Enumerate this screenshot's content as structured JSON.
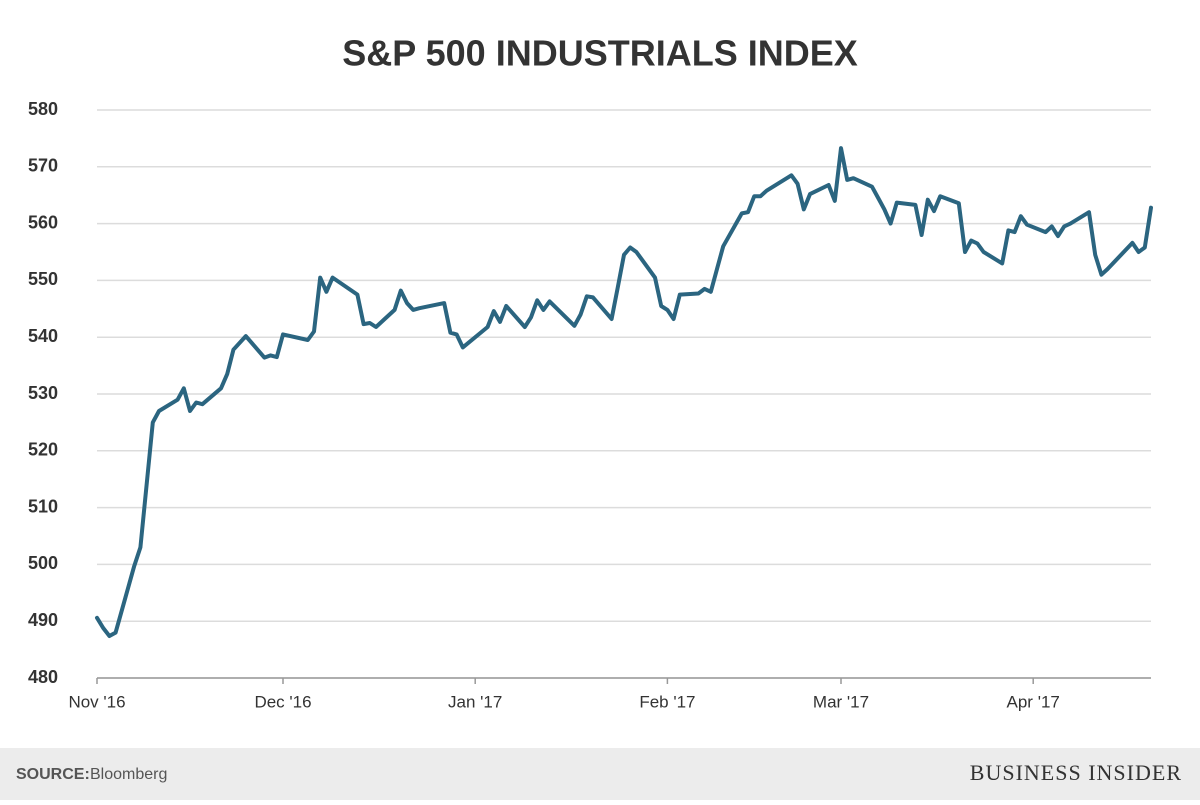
{
  "chart_data": {
    "type": "line",
    "title": "S&P 500 INDUSTRIALS INDEX",
    "x": [
      0,
      1,
      2,
      3,
      6,
      7,
      9,
      10,
      13,
      14,
      15,
      16,
      17,
      20,
      21,
      22,
      24,
      27,
      28,
      29,
      30,
      34,
      35,
      36,
      37,
      38,
      42,
      43,
      44,
      45,
      48,
      49,
      50,
      51,
      52,
      56,
      57,
      58,
      59,
      63,
      64,
      65,
      66,
      69,
      70,
      71,
      72,
      73,
      77,
      78,
      79,
      80,
      83,
      84,
      85,
      86,
      87,
      90,
      91,
      92,
      93,
      94,
      97,
      98,
      99,
      100,
      101,
      104,
      105,
      106,
      107,
      108,
      112,
      113,
      114,
      115,
      118,
      119,
      120,
      121,
      122,
      125,
      126,
      127,
      128,
      129,
      132,
      133,
      134,
      135,
      136,
      139,
      140,
      141,
      142,
      143,
      146,
      147,
      148,
      149,
      150,
      153,
      154,
      155,
      156,
      157,
      160,
      161,
      162,
      163,
      167,
      168,
      169,
      170
    ],
    "values": [
      490.6,
      488.8,
      487.4,
      488,
      499.7,
      503,
      525,
      527,
      529,
      531,
      527,
      528.5,
      528.2,
      531,
      533.5,
      537.8,
      540.2,
      536.4,
      536.8,
      536.5,
      540.5,
      539.5,
      541,
      550.5,
      548,
      550.5,
      547.5,
      542.3,
      542.5,
      541.8,
      544.8,
      548.2,
      546,
      544.8,
      545.1,
      546,
      540.8,
      540.5,
      538.2,
      541.8,
      544.6,
      542.7,
      545.5,
      541.8,
      543.5,
      546.5,
      544.8,
      546.3,
      542,
      544,
      547.2,
      547,
      543.2,
      548.8,
      554.5,
      555.8,
      555,
      550.5,
      545.5,
      544.8,
      543.2,
      547.5,
      547.7,
      548.5,
      548,
      552,
      556,
      561.8,
      562,
      564.8,
      564.8,
      565.8,
      568.5,
      567,
      562.5,
      565.2,
      566.8,
      564,
      573.3,
      567.7,
      568,
      566.5,
      564.5,
      562.5,
      560,
      563.7,
      563.3,
      558,
      564.2,
      562.2,
      564.8,
      563.6,
      555,
      557,
      556.5,
      555,
      553,
      558.8,
      558.5,
      561.3,
      559.8,
      558.5,
      559.5,
      557.8,
      559.5,
      560,
      562,
      554.5,
      551,
      552,
      556.6,
      555,
      555.8,
      562.8
    ],
    "color": "#2b6580",
    "xlim": [
      0,
      170
    ],
    "xticks": [
      {
        "value": 0,
        "label": "Nov '16"
      },
      {
        "value": 30,
        "label": "Dec '16"
      },
      {
        "value": 61,
        "label": "Jan '17"
      },
      {
        "value": 92,
        "label": "Feb '17"
      },
      {
        "value": 120,
        "label": "Mar '17"
      },
      {
        "value": 151,
        "label": "Apr '17"
      }
    ],
    "ylim": [
      480,
      580
    ],
    "yticks": [
      480,
      490,
      500,
      510,
      520,
      530,
      540,
      550,
      560,
      570,
      580
    ],
    "grid": true
  },
  "footer": {
    "source_label": "SOURCE:",
    "source": "Bloomberg",
    "brand": "BUSINESS INSIDER"
  }
}
